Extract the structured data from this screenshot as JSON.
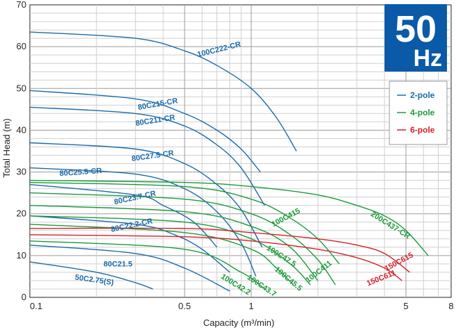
{
  "chart_data": {
    "type": "line",
    "title": "",
    "xlabel": "Capacity (m³/min)",
    "ylabel": "Total Head (m)",
    "x_scale": "log",
    "xlim": [
      0.1,
      8
    ],
    "ylim": [
      0,
      70
    ],
    "x_ticks": [
      0.1,
      0.5,
      1,
      5,
      8
    ],
    "x_tick_labels": [
      "0.1",
      "0.5",
      "1",
      "5",
      "8"
    ],
    "y_ticks": [
      0,
      10,
      20,
      30,
      40,
      50,
      60,
      70
    ],
    "grid": true,
    "badge": {
      "big": "50",
      "small": "Hz",
      "color": "#0a5aa8"
    },
    "legend": {
      "placement": "right",
      "items": [
        {
          "label": "2-pole",
          "color": "#1a6aaa"
        },
        {
          "label": "4-pole",
          "color": "#1a9a3a"
        },
        {
          "label": "6-pole",
          "color": "#d4202a"
        }
      ]
    },
    "series": [
      {
        "name": "100C222-CR",
        "group": "2-pole",
        "x": [
          0.1,
          0.3,
          0.5,
          0.7,
          1.0,
          1.3,
          1.6
        ],
        "y": [
          63.5,
          62,
          59,
          55.5,
          50,
          43,
          35
        ]
      },
      {
        "name": "80C215-CR",
        "group": "2-pole",
        "x": [
          0.1,
          0.3,
          0.5,
          0.7,
          0.9,
          1.1
        ],
        "y": [
          49.5,
          47.5,
          44,
          40,
          35.5,
          30
        ]
      },
      {
        "name": "80C211-CR",
        "group": "2-pole",
        "x": [
          0.1,
          0.3,
          0.5,
          0.7,
          0.9,
          1.15
        ],
        "y": [
          45.5,
          44,
          41,
          36.5,
          31,
          22
        ]
      },
      {
        "name": "80C27.5-CR",
        "group": "2-pole",
        "x": [
          0.1,
          0.3,
          0.5,
          0.7,
          0.9,
          1.12
        ],
        "y": [
          37,
          35.5,
          32,
          27,
          21,
          12
        ]
      },
      {
        "name": "80C25.5-CR",
        "group": "2-pole",
        "x": [
          0.1,
          0.3,
          0.5,
          0.7,
          0.9,
          1.05
        ],
        "y": [
          31,
          29.5,
          26,
          20.5,
          13,
          5
        ]
      },
      {
        "name": "80C23.7-CR",
        "group": "2-pole",
        "x": [
          0.1,
          0.3,
          0.4,
          0.55,
          0.7
        ],
        "y": [
          27,
          24.5,
          22,
          18,
          12
        ]
      },
      {
        "name": "80C22.2-CR",
        "group": "2-pole",
        "x": [
          0.1,
          0.3,
          0.45,
          0.6,
          0.8
        ],
        "y": [
          19.5,
          17.5,
          15,
          11.5,
          6
        ]
      },
      {
        "name": "80C21.5",
        "group": "2-pole",
        "x": [
          0.1,
          0.3,
          0.5,
          0.8
        ],
        "y": [
          12.5,
          10.5,
          7,
          1.5
        ]
      },
      {
        "name": "50C2.75(S)",
        "group": "2-pole",
        "x": [
          0.1,
          0.2,
          0.3,
          0.36
        ],
        "y": [
          8.5,
          6,
          3.5,
          2
        ]
      },
      {
        "name": "200C437-CR",
        "group": "4-pole",
        "x": [
          0.1,
          0.5,
          1.0,
          2.0,
          3.0,
          4.0,
          5.0,
          6.3
        ],
        "y": [
          28,
          27.5,
          26.5,
          24.5,
          22,
          19.5,
          16,
          10
        ]
      },
      {
        "name": "100C415",
        "group": "4-pole",
        "x": [
          0.1,
          0.5,
          1.0,
          1.5,
          2.0,
          2.5
        ],
        "y": [
          27.5,
          26.5,
          23.5,
          19,
          14,
          8
        ]
      },
      {
        "name": "100C411",
        "group": "4-pole",
        "x": [
          0.1,
          0.5,
          1.0,
          1.5,
          2.0,
          2.4
        ],
        "y": [
          25,
          23.5,
          20,
          15,
          9,
          3
        ]
      },
      {
        "name": "100C47.5",
        "group": "4-pole",
        "x": [
          0.1,
          0.5,
          1.0,
          1.5,
          2.0
        ],
        "y": [
          22,
          20.5,
          17,
          12,
          4
        ]
      },
      {
        "name": "100C45.5",
        "group": "4-pole",
        "x": [
          0.1,
          0.5,
          1.0,
          1.5,
          1.85
        ],
        "y": [
          19.5,
          18,
          14,
          8,
          3
        ]
      },
      {
        "name": "100C43.7",
        "group": "4-pole",
        "x": [
          0.1,
          0.5,
          1.0,
          1.3,
          1.55
        ],
        "y": [
          17.5,
          15.5,
          11.5,
          7,
          3
        ]
      },
      {
        "name": "100C42.2",
        "group": "4-pole",
        "x": [
          0.1,
          0.5,
          0.9,
          1.15
        ],
        "y": [
          13.5,
          11.5,
          6,
          2
        ]
      },
      {
        "name": "150C615",
        "group": "6-pole",
        "x": [
          0.1,
          0.5,
          1.0,
          2.0,
          3.0,
          4.0,
          5.2
        ],
        "y": [
          16.5,
          16.5,
          15.5,
          14,
          12.5,
          10.5,
          6
        ]
      },
      {
        "name": "150C611",
        "group": "6-pole",
        "x": [
          0.1,
          0.5,
          1.0,
          2.0,
          3.0,
          4.0,
          4.8
        ],
        "y": [
          15,
          14.5,
          13.5,
          11.5,
          9.5,
          7,
          4
        ]
      }
    ],
    "annotations": [
      {
        "text": "100C222-CR",
        "at": [
          0.72,
          58.8
        ],
        "angle": -14,
        "group": "2-pole"
      },
      {
        "text": "80C215-CR",
        "at": [
          0.38,
          45.7
        ],
        "angle": -10,
        "group": "2-pole"
      },
      {
        "text": "80C211-CR",
        "at": [
          0.37,
          41.8
        ],
        "angle": -9,
        "group": "2-pole"
      },
      {
        "text": "80C27.5-CR",
        "at": [
          0.36,
          33.3
        ],
        "angle": -8,
        "group": "2-pole"
      },
      {
        "text": "80C25.5-CR",
        "at": [
          0.17,
          29.4
        ],
        "angle": -4,
        "group": "2-pole"
      },
      {
        "text": "80C23.7-CR",
        "at": [
          0.3,
          23.3
        ],
        "angle": -12,
        "group": "2-pole"
      },
      {
        "text": "80C22.2-CR",
        "at": [
          0.29,
          16.7
        ],
        "angle": -12,
        "group": "2-pole"
      },
      {
        "text": "80C21.5",
        "at": [
          0.25,
          7.4
        ],
        "angle": 0,
        "group": "2-pole"
      },
      {
        "text": "50C2.75(S)",
        "at": [
          0.195,
          3.6
        ],
        "angle": 8,
        "group": "2-pole"
      },
      {
        "text": "200C437-CR",
        "at": [
          4.2,
          16.8
        ],
        "angle": 32,
        "group": "4-pole"
      },
      {
        "text": "100C415",
        "at": [
          1.45,
          18.6
        ],
        "angle": -28,
        "group": "4-pole"
      },
      {
        "text": "100C47.5",
        "at": [
          1.35,
          9.4
        ],
        "angle": 32,
        "group": "4-pole"
      },
      {
        "text": "100C411",
        "at": [
          2.05,
          5.7
        ],
        "angle": -38,
        "group": "4-pole"
      },
      {
        "text": "100C45.5",
        "at": [
          1.45,
          4.0
        ],
        "angle": 40,
        "group": "4-pole"
      },
      {
        "text": "100C43.7",
        "at": [
          1.1,
          2.3
        ],
        "angle": 34,
        "group": "4-pole"
      },
      {
        "text": "100C42.2",
        "at": [
          0.84,
          2.6
        ],
        "angle": 32,
        "group": "4-pole"
      },
      {
        "text": "150C615",
        "at": [
          4.7,
          8.0
        ],
        "angle": -28,
        "group": "6-pole"
      },
      {
        "text": "150C611",
        "at": [
          3.9,
          4.1
        ],
        "angle": -22,
        "group": "6-pole"
      }
    ]
  }
}
